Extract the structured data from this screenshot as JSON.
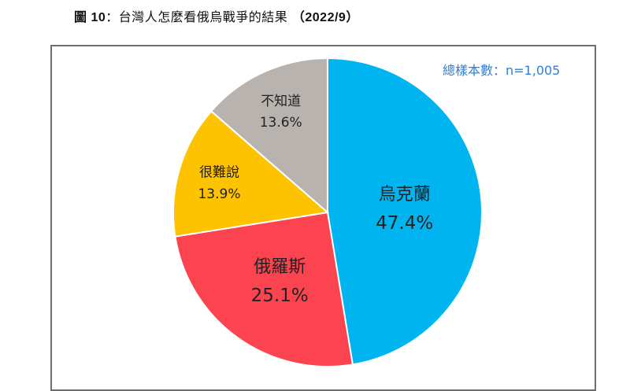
{
  "figure": {
    "lead": "圖 10",
    "sep": "：",
    "caption": "台灣人怎麼看俄烏戰爭的結果",
    "date": "（2022/9）"
  },
  "sample_note": "總樣本數：n=1,005",
  "chart_data": {
    "type": "pie",
    "start_angle_deg": 0,
    "direction": "clockwise",
    "slices": [
      {
        "label": "烏克蘭",
        "value": 47.4,
        "value_label": "47.4%",
        "color": "#00b4f0"
      },
      {
        "label": "俄羅斯",
        "value": 25.1,
        "value_label": "25.1%",
        "color": "#fc4450"
      },
      {
        "label": "很難說",
        "value": 13.9,
        "value_label": "13.9%",
        "color": "#fdc301"
      },
      {
        "label": "不知道",
        "value": 13.6,
        "value_label": "13.6%",
        "color": "#b9b3af"
      }
    ]
  }
}
